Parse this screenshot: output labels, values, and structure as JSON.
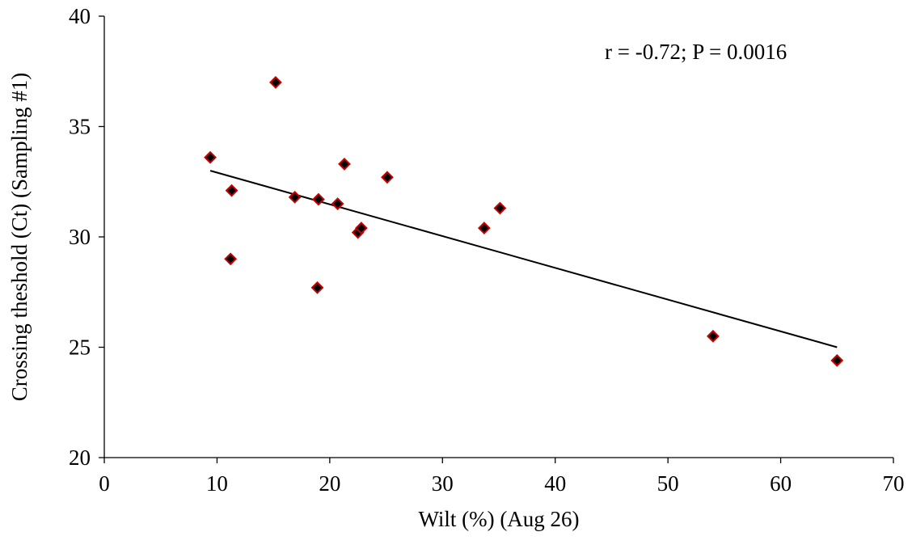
{
  "chart_data": {
    "type": "scatter",
    "title": "",
    "xlabel": "Wilt (%)  (Aug 26)",
    "ylabel": "Crossing theshold (Ct) (Sampling #1)",
    "xlim": [
      0,
      70
    ],
    "ylim": [
      20,
      40
    ],
    "xticks": [
      "0",
      "10",
      "20",
      "30",
      "40",
      "50",
      "60",
      "70"
    ],
    "yticks": [
      "20",
      "25",
      "30",
      "35",
      "40"
    ],
    "grid": false,
    "annotation": "r = -0.72; P = 0.0016",
    "marker": {
      "shape": "diamond",
      "fill": "#000000",
      "edge": "#cc0000"
    },
    "points": [
      {
        "x": 9.4,
        "y": 33.6
      },
      {
        "x": 11.2,
        "y": 29.0
      },
      {
        "x": 11.3,
        "y": 32.1
      },
      {
        "x": 15.2,
        "y": 37.0
      },
      {
        "x": 16.9,
        "y": 31.8
      },
      {
        "x": 18.9,
        "y": 27.7
      },
      {
        "x": 19.0,
        "y": 31.7
      },
      {
        "x": 20.7,
        "y": 31.5
      },
      {
        "x": 21.3,
        "y": 33.3
      },
      {
        "x": 22.5,
        "y": 30.2
      },
      {
        "x": 22.8,
        "y": 30.4
      },
      {
        "x": 25.1,
        "y": 32.7
      },
      {
        "x": 33.7,
        "y": 30.4
      },
      {
        "x": 35.1,
        "y": 31.3
      },
      {
        "x": 54.0,
        "y": 25.5
      },
      {
        "x": 65.0,
        "y": 24.4
      }
    ],
    "trendline": {
      "x": [
        9.4,
        65.0
      ],
      "y": [
        33.0,
        25.0
      ],
      "color": "#000000"
    }
  }
}
